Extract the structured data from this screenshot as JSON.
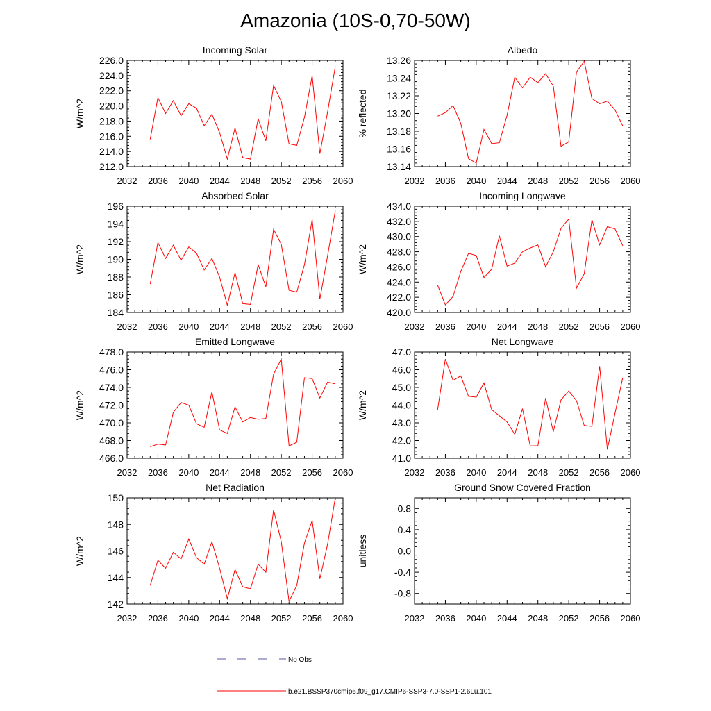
{
  "figure": {
    "title": "Amazonia (10S-0,70-50W)",
    "legend": [
      {
        "label": "No Obs",
        "color": "#5a5aa0",
        "style": "dashed"
      },
      {
        "label": "b.e21.BSSP370cmip6.f09_g17.CMIP6-SSP3-7.0-SSP1-2.6Lu.101",
        "color": "#ff0000",
        "style": "solid"
      }
    ]
  },
  "chart_data": [
    {
      "type": "line",
      "title": "Incoming Solar",
      "xlabel": "",
      "ylabel": "W/m^2",
      "xlim": [
        2032,
        2060
      ],
      "ylim": [
        212,
        226
      ],
      "xticks": [
        2032,
        2036,
        2040,
        2044,
        2048,
        2052,
        2056,
        2060
      ],
      "xtick_labels": [
        "2032",
        "2036",
        "2040",
        "2044",
        "2048",
        "2052",
        "2056",
        "2060"
      ],
      "yticks": [
        212,
        214,
        216,
        218,
        220,
        222,
        224,
        226
      ],
      "ytick_labels": [
        "212.0",
        "214.0",
        "216.0",
        "218.0",
        "220.0",
        "222.0",
        "224.0",
        "226.0"
      ],
      "series": [
        {
          "color": "#ff0000",
          "x": [
            2035,
            2036,
            2037,
            2038,
            2039,
            2040,
            2041,
            2042,
            2043,
            2044,
            2045,
            2046,
            2047,
            2048,
            2049,
            2050,
            2051,
            2052,
            2053,
            2054,
            2055,
            2056,
            2057,
            2058,
            2059
          ],
          "values": [
            215.6,
            221.1,
            219.0,
            220.7,
            218.7,
            220.3,
            219.7,
            217.4,
            218.9,
            216.5,
            213.0,
            217.1,
            213.2,
            213.0,
            218.3,
            215.4,
            222.7,
            220.6,
            215.0,
            214.8,
            218.5,
            224.0,
            213.7,
            219.2,
            225.2
          ]
        }
      ]
    },
    {
      "type": "line",
      "title": "Albedo",
      "xlabel": "",
      "ylabel": "% reflected",
      "xlim": [
        2032,
        2060
      ],
      "ylim": [
        13.14,
        13.26
      ],
      "xticks": [
        2032,
        2036,
        2040,
        2044,
        2048,
        2052,
        2056,
        2060
      ],
      "xtick_labels": [
        "2032",
        "2036",
        "2040",
        "2044",
        "2048",
        "2052",
        "2056",
        "2060"
      ],
      "yticks": [
        13.14,
        13.16,
        13.18,
        13.2,
        13.22,
        13.24,
        13.26
      ],
      "ytick_labels": [
        "13.14",
        "13.16",
        "13.18",
        "13.20",
        "13.22",
        "13.24",
        "13.26"
      ],
      "series": [
        {
          "color": "#ff0000",
          "x": [
            2035,
            2036,
            2037,
            2038,
            2039,
            2040,
            2041,
            2042,
            2043,
            2044,
            2045,
            2046,
            2047,
            2048,
            2049,
            2050,
            2051,
            2052,
            2053,
            2054,
            2055,
            2056,
            2057,
            2058,
            2059
          ],
          "values": [
            13.197,
            13.201,
            13.209,
            13.189,
            13.149,
            13.144,
            13.182,
            13.166,
            13.167,
            13.198,
            13.241,
            13.229,
            13.241,
            13.235,
            13.245,
            13.231,
            13.163,
            13.168,
            13.247,
            13.259,
            13.217,
            13.211,
            13.214,
            13.204,
            13.186
          ]
        }
      ]
    },
    {
      "type": "line",
      "title": "Absorbed Solar",
      "xlabel": "",
      "ylabel": "W/m^2",
      "xlim": [
        2032,
        2060
      ],
      "ylim": [
        184,
        196
      ],
      "xticks": [
        2032,
        2036,
        2040,
        2044,
        2048,
        2052,
        2056,
        2060
      ],
      "xtick_labels": [
        "2032",
        "2036",
        "2040",
        "2044",
        "2048",
        "2052",
        "2056",
        "2060"
      ],
      "yticks": [
        184,
        186,
        188,
        190,
        192,
        194,
        196
      ],
      "ytick_labels": [
        "184",
        "186",
        "188",
        "190",
        "192",
        "194",
        "196"
      ],
      "series": [
        {
          "color": "#ff0000",
          "x": [
            2035,
            2036,
            2037,
            2038,
            2039,
            2040,
            2041,
            2042,
            2043,
            2044,
            2045,
            2046,
            2047,
            2048,
            2049,
            2050,
            2051,
            2052,
            2053,
            2054,
            2055,
            2056,
            2057,
            2058,
            2059
          ],
          "values": [
            187.2,
            191.9,
            190.1,
            191.6,
            189.9,
            191.4,
            190.7,
            188.8,
            190.1,
            188.0,
            184.8,
            188.5,
            185.0,
            184.9,
            189.4,
            186.9,
            193.4,
            191.7,
            186.5,
            186.3,
            189.4,
            194.5,
            185.5,
            190.4,
            195.5
          ]
        }
      ]
    },
    {
      "type": "line",
      "title": "Incoming Longwave",
      "xlabel": "",
      "ylabel": "W/m^2",
      "xlim": [
        2032,
        2060
      ],
      "ylim": [
        420,
        434
      ],
      "xticks": [
        2032,
        2036,
        2040,
        2044,
        2048,
        2052,
        2056,
        2060
      ],
      "xtick_labels": [
        "2032",
        "2036",
        "2040",
        "2044",
        "2048",
        "2052",
        "2056",
        "2060"
      ],
      "yticks": [
        420,
        422,
        424,
        426,
        428,
        430,
        432,
        434
      ],
      "ytick_labels": [
        "420.0",
        "422.0",
        "424.0",
        "426.0",
        "428.0",
        "430.0",
        "432.0",
        "434.0"
      ],
      "series": [
        {
          "color": "#ff0000",
          "x": [
            2035,
            2036,
            2037,
            2038,
            2039,
            2040,
            2041,
            2042,
            2043,
            2044,
            2045,
            2046,
            2047,
            2048,
            2049,
            2050,
            2051,
            2052,
            2053,
            2054,
            2055,
            2056,
            2057,
            2058,
            2059
          ],
          "values": [
            423.6,
            421.0,
            422.1,
            425.4,
            427.8,
            427.5,
            424.6,
            425.7,
            430.1,
            426.1,
            426.5,
            428.0,
            428.5,
            428.9,
            426.0,
            428.0,
            431.1,
            432.3,
            423.2,
            425.1,
            432.2,
            428.9,
            431.3,
            431.0,
            428.8
          ]
        }
      ]
    },
    {
      "type": "line",
      "title": "Emitted Longwave",
      "xlabel": "",
      "ylabel": "W/m^2",
      "xlim": [
        2032,
        2060
      ],
      "ylim": [
        466,
        478
      ],
      "xticks": [
        2032,
        2036,
        2040,
        2044,
        2048,
        2052,
        2056,
        2060
      ],
      "xtick_labels": [
        "2032",
        "2036",
        "2040",
        "2044",
        "2048",
        "2052",
        "2056",
        "2060"
      ],
      "yticks": [
        466,
        468,
        470,
        472,
        474,
        476,
        478
      ],
      "ytick_labels": [
        "466.0",
        "468.0",
        "470.0",
        "472.0",
        "474.0",
        "476.0",
        "478.0"
      ],
      "series": [
        {
          "color": "#ff0000",
          "x": [
            2035,
            2036,
            2037,
            2038,
            2039,
            2040,
            2041,
            2042,
            2043,
            2044,
            2045,
            2046,
            2047,
            2048,
            2049,
            2050,
            2051,
            2052,
            2053,
            2054,
            2055,
            2056,
            2057,
            2058,
            2059
          ],
          "values": [
            467.3,
            467.6,
            467.5,
            471.2,
            472.3,
            472.0,
            469.9,
            469.5,
            473.5,
            469.2,
            468.8,
            471.8,
            470.1,
            470.6,
            470.4,
            470.5,
            475.5,
            477.2,
            467.4,
            467.8,
            475.1,
            475.0,
            472.8,
            474.6,
            474.4
          ]
        }
      ]
    },
    {
      "type": "line",
      "title": "Net Longwave",
      "xlabel": "",
      "ylabel": "W/m^2",
      "xlim": [
        2032,
        2060
      ],
      "ylim": [
        41,
        47
      ],
      "xticks": [
        2032,
        2036,
        2040,
        2044,
        2048,
        2052,
        2056,
        2060
      ],
      "xtick_labels": [
        "2032",
        "2036",
        "2040",
        "2044",
        "2048",
        "2052",
        "2056",
        "2060"
      ],
      "yticks": [
        41,
        42,
        43,
        44,
        45,
        46,
        47
      ],
      "ytick_labels": [
        "41.0",
        "42.0",
        "43.0",
        "44.0",
        "45.0",
        "46.0",
        "47.0"
      ],
      "series": [
        {
          "color": "#ff0000",
          "x": [
            2035,
            2036,
            2037,
            2038,
            2039,
            2040,
            2041,
            2042,
            2043,
            2044,
            2045,
            2046,
            2047,
            2048,
            2049,
            2050,
            2051,
            2052,
            2053,
            2054,
            2055,
            2056,
            2057,
            2058,
            2059
          ],
          "values": [
            43.75,
            46.6,
            45.4,
            45.65,
            44.5,
            44.45,
            45.25,
            43.75,
            43.4,
            43.05,
            42.35,
            43.8,
            41.7,
            41.7,
            44.4,
            42.5,
            44.3,
            44.8,
            44.25,
            42.85,
            42.8,
            46.2,
            41.5,
            43.55,
            45.55
          ]
        }
      ]
    },
    {
      "type": "line",
      "title": "Net Radiation",
      "xlabel": "",
      "ylabel": "W/m^2",
      "xlim": [
        2032,
        2060
      ],
      "ylim": [
        142,
        150
      ],
      "xticks": [
        2032,
        2036,
        2040,
        2044,
        2048,
        2052,
        2056,
        2060
      ],
      "xtick_labels": [
        "2032",
        "2036",
        "2040",
        "2044",
        "2048",
        "2052",
        "2056",
        "2060"
      ],
      "yticks": [
        142,
        144,
        146,
        148,
        150
      ],
      "ytick_labels": [
        "142",
        "144",
        "146",
        "148",
        "150"
      ],
      "series": [
        {
          "color": "#ff0000",
          "x": [
            2035,
            2036,
            2037,
            2038,
            2039,
            2040,
            2041,
            2042,
            2043,
            2044,
            2045,
            2046,
            2047,
            2048,
            2049,
            2050,
            2051,
            2052,
            2053,
            2054,
            2055,
            2056,
            2057,
            2058,
            2059
          ],
          "values": [
            143.4,
            145.3,
            144.7,
            145.9,
            145.4,
            146.9,
            145.5,
            145.0,
            146.7,
            144.7,
            142.4,
            144.6,
            143.3,
            143.15,
            145.0,
            144.4,
            149.1,
            146.7,
            142.2,
            143.4,
            146.6,
            148.3,
            143.9,
            146.5,
            150.0
          ]
        }
      ]
    },
    {
      "type": "line",
      "title": "Ground Snow Covered Fraction",
      "xlabel": "",
      "ylabel": "unitless",
      "xlim": [
        2032,
        2060
      ],
      "ylim": [
        -1,
        1
      ],
      "xticks": [
        2032,
        2036,
        2040,
        2044,
        2048,
        2052,
        2056,
        2060
      ],
      "xtick_labels": [
        "2032",
        "2036",
        "2040",
        "2044",
        "2048",
        "2052",
        "2056",
        "2060"
      ],
      "yticks": [
        -0.8,
        -0.4,
        0.0,
        0.4,
        0.8
      ],
      "ytick_labels": [
        "-0.8",
        "-0.4",
        "0.0",
        "0.4",
        "0.8"
      ],
      "series": [
        {
          "color": "#ff0000",
          "x": [
            2035,
            2059
          ],
          "values": [
            0,
            0
          ]
        }
      ]
    }
  ]
}
